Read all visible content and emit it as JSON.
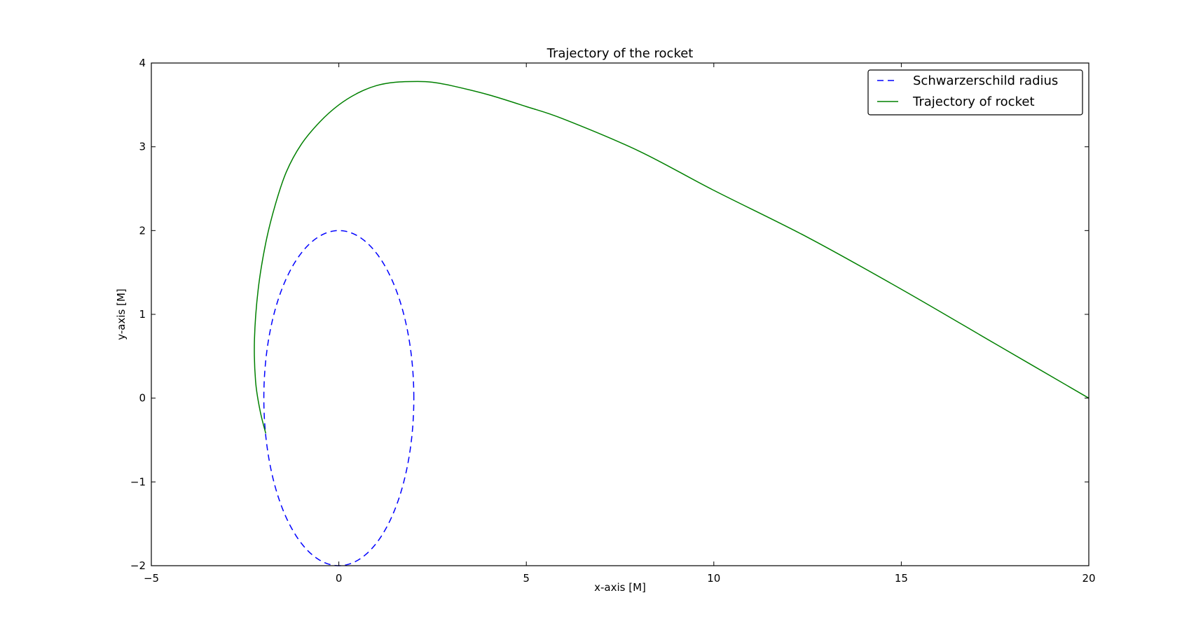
{
  "chart_data": {
    "type": "line",
    "title": "Trajectory of the rocket",
    "xlabel": "x-axis [M]",
    "ylabel": "y-axis [M]",
    "xlim": [
      -5,
      20
    ],
    "ylim": [
      -2,
      4
    ],
    "xticks": [
      -5,
      0,
      5,
      10,
      15,
      20
    ],
    "yticks": [
      -2,
      -1,
      0,
      1,
      2,
      3,
      4
    ],
    "grid": false,
    "legend_position": "top-right",
    "series": [
      {
        "name": "Schwarzerschild radius",
        "style": "dashed",
        "color": "#0000ff",
        "shape": "circle",
        "center": [
          0,
          0
        ],
        "radius": 2
      },
      {
        "name": "Trajectory of rocket",
        "style": "solid",
        "color": "#008000",
        "points": [
          [
            20.0,
            0.0
          ],
          [
            17.5,
            0.65
          ],
          [
            15.0,
            1.3
          ],
          [
            12.5,
            1.92
          ],
          [
            10.0,
            2.48
          ],
          [
            8.0,
            2.95
          ],
          [
            6.0,
            3.33
          ],
          [
            5.0,
            3.48
          ],
          [
            4.0,
            3.62
          ],
          [
            3.0,
            3.73
          ],
          [
            2.5,
            3.77
          ],
          [
            2.1,
            3.78
          ],
          [
            1.5,
            3.77
          ],
          [
            1.0,
            3.73
          ],
          [
            0.5,
            3.64
          ],
          [
            0.0,
            3.5
          ],
          [
            -0.5,
            3.3
          ],
          [
            -1.0,
            3.03
          ],
          [
            -1.4,
            2.7
          ],
          [
            -1.7,
            2.3
          ],
          [
            -1.95,
            1.85
          ],
          [
            -2.15,
            1.3
          ],
          [
            -2.25,
            0.7
          ],
          [
            -2.22,
            0.2
          ],
          [
            -2.1,
            -0.15
          ],
          [
            -1.95,
            -0.42
          ]
        ]
      }
    ]
  }
}
